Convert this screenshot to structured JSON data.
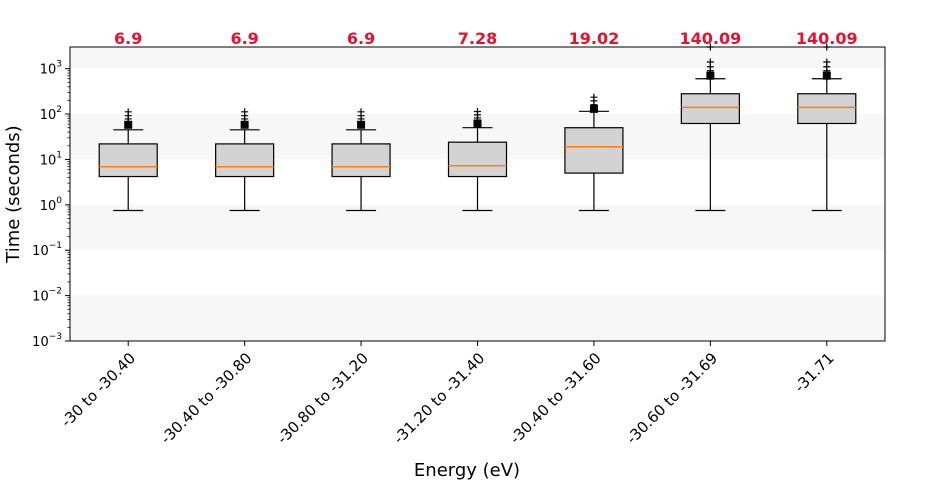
{
  "chart_data": {
    "type": "boxplot",
    "title": "",
    "xlabel": "Energy (eV)",
    "ylabel": "Time (seconds)",
    "yscale": "log",
    "ylim": [
      0.001,
      3000
    ],
    "ytick_values": [
      0.001,
      0.01,
      0.1,
      1,
      10,
      100,
      1000
    ],
    "ytick_exponents": [
      "−3",
      "−2",
      "−1",
      "0",
      "1",
      "2",
      "3"
    ],
    "ytick_base": "10",
    "categories": [
      "-30 to -30.40",
      "-30.40 to -30.80",
      "-30.80 to -31.20",
      "-31.20 to -31.40",
      "-30.40 to -31.60",
      "-30.60 to -31.69",
      "-31.71"
    ],
    "top_labels": [
      "6.9",
      "6.9",
      "6.9",
      "7.28",
      "19.02",
      "140.09",
      "140.09"
    ],
    "boxes": [
      {
        "whisker_low": 0.75,
        "q1": 4.2,
        "median": 6.9,
        "q3": 22,
        "whisker_high": 45,
        "mean": 58,
        "fliers": [
          60,
          68,
          78,
          92,
          112
        ]
      },
      {
        "whisker_low": 0.75,
        "q1": 4.2,
        "median": 6.9,
        "q3": 22,
        "whisker_high": 45,
        "mean": 58,
        "fliers": [
          60,
          68,
          78,
          92,
          112
        ]
      },
      {
        "whisker_low": 0.75,
        "q1": 4.2,
        "median": 6.9,
        "q3": 22,
        "whisker_high": 45,
        "mean": 58,
        "fliers": [
          60,
          68,
          78,
          92,
          112
        ]
      },
      {
        "whisker_low": 0.75,
        "q1": 4.2,
        "median": 7.28,
        "q3": 24,
        "whisker_high": 50,
        "mean": 62,
        "fliers": [
          64,
          72,
          82,
          96,
          114
        ]
      },
      {
        "whisker_low": 0.75,
        "q1": 5.0,
        "median": 19.02,
        "q3": 50,
        "whisker_high": 115,
        "mean": 130,
        "fliers": [
          135,
          160,
          195,
          235
        ]
      },
      {
        "whisker_low": 0.75,
        "q1": 62,
        "median": 140.09,
        "q3": 280,
        "whisker_high": 600,
        "mean": 700,
        "fliers": [
          650,
          760,
          900,
          1100,
          1400,
          3000
        ]
      },
      {
        "whisker_low": 0.75,
        "q1": 62,
        "median": 140.09,
        "q3": 280,
        "whisker_high": 600,
        "mean": 700,
        "fliers": [
          650,
          760,
          900,
          1100,
          1400,
          3000
        ]
      }
    ],
    "colors": {
      "box_fill": "#d3d3d3",
      "median_line": "#ff7f0e",
      "top_label": "#e8112d",
      "band_light": "#f7f7f7",
      "band_white": "#ffffff"
    }
  }
}
